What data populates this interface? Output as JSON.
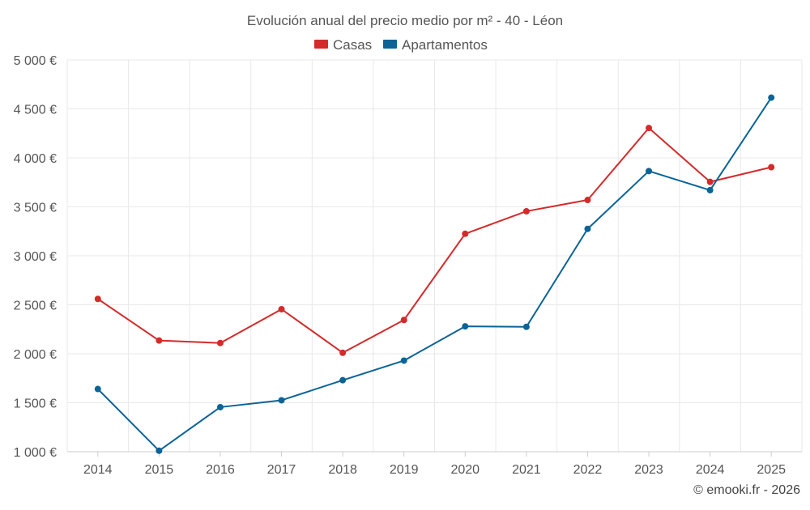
{
  "chart_data": {
    "type": "line",
    "title": "Evolución anual del precio medio por m² - 40 - Léon",
    "categories": [
      "2014",
      "2015",
      "2016",
      "2017",
      "2018",
      "2019",
      "2020",
      "2021",
      "2022",
      "2023",
      "2024",
      "2025"
    ],
    "series": [
      {
        "name": "Casas",
        "color": "#d42a2a",
        "values": [
          2560,
          2135,
          2110,
          2455,
          2010,
          2345,
          3225,
          3455,
          3570,
          4305,
          3755,
          3905
        ]
      },
      {
        "name": "Apartamentos",
        "color": "#0b6396",
        "values": [
          1640,
          1010,
          1455,
          1525,
          1730,
          1930,
          2280,
          2275,
          3275,
          3865,
          3670,
          4615
        ]
      }
    ],
    "y_ticks": [
      1000,
      1500,
      2000,
      2500,
      3000,
      3500,
      4000,
      4500,
      5000
    ],
    "y_tick_labels": [
      "1 000 €",
      "1 500 €",
      "2 000 €",
      "2 500 €",
      "3 000 €",
      "3 500 €",
      "4 000 €",
      "4 500 €",
      "5 000 €"
    ],
    "ylim": [
      1000,
      5000
    ],
    "xlabel": "",
    "ylabel": "",
    "grid": true,
    "legend_position": "top-center"
  },
  "credit": "© emooki.fr - 2026"
}
